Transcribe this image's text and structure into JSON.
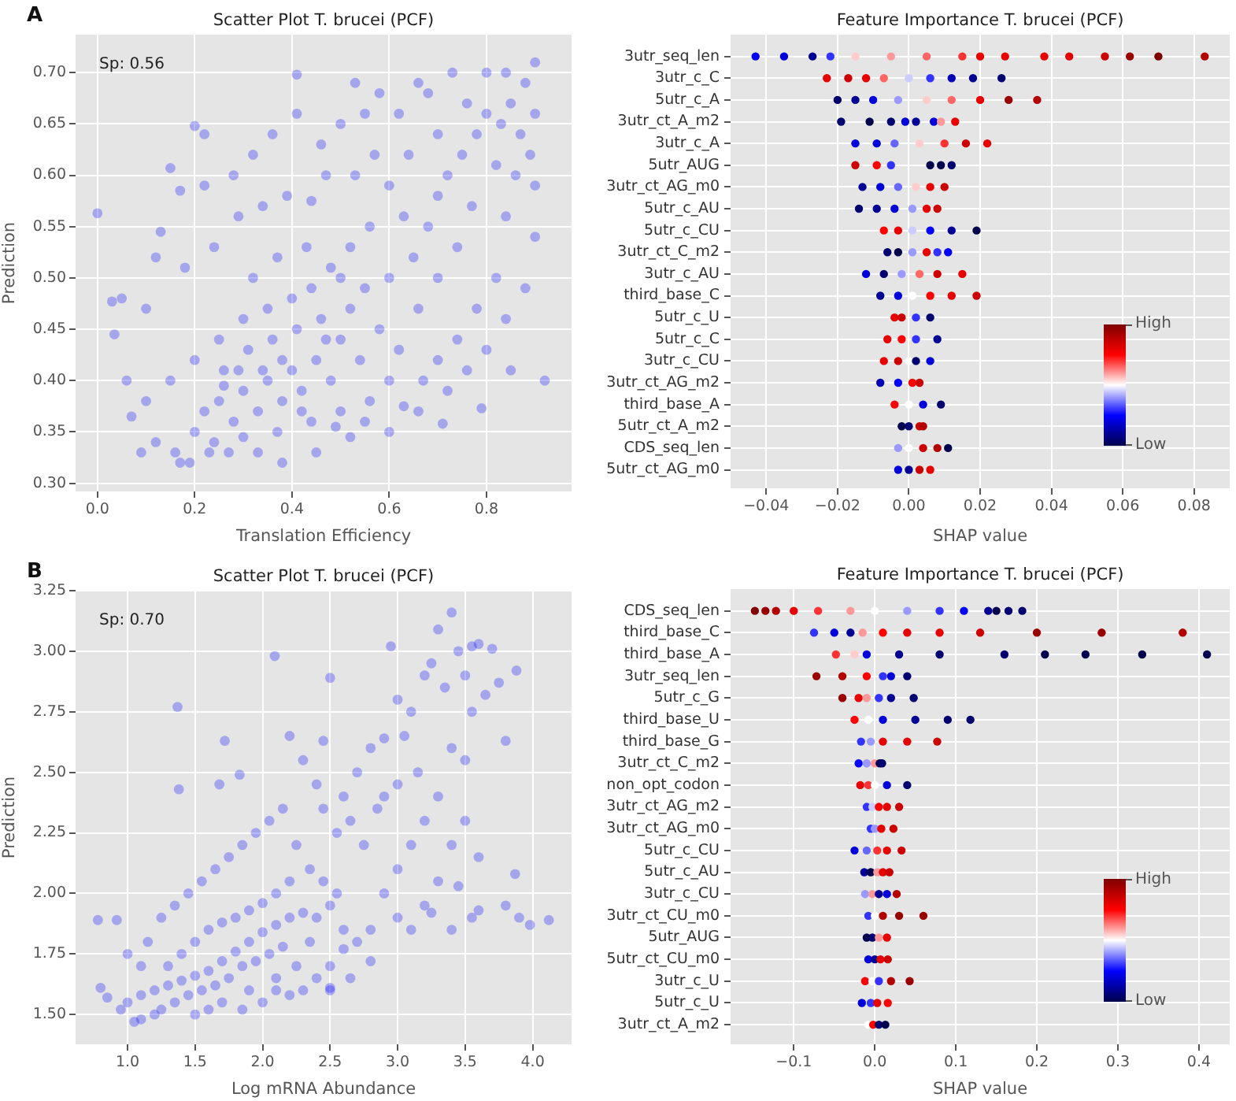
{
  "chart_data": [
    {
      "type": "scatter",
      "title": "Scatter Plot T. brucei (PCF)",
      "xlabel": "Translation Efficiency",
      "ylabel": "Prediction",
      "annotations": [
        "A",
        "Sp: 0.56"
      ],
      "color": "#0000ff",
      "marker": "circle",
      "grid": true,
      "xlim": [
        -0.045,
        0.975
      ],
      "xticks": [
        {
          "value": 0,
          "label": "0.0"
        },
        0.2,
        0.4,
        0.6,
        0.8
      ],
      "ylim": [
        0.292,
        0.737
      ],
      "yticks": [
        {
          "value": 0.3,
          "label": "0.30"
        },
        0.35,
        {
          "value": 0.4,
          "label": "0.40"
        },
        0.45,
        {
          "value": 0.5,
          "label": "0.50"
        },
        0.55,
        {
          "value": 0.6,
          "label": "0.60"
        },
        0.65,
        {
          "value": 0.7,
          "label": "0.70"
        }
      ],
      "x": [
        0.25,
        0.3,
        0.35,
        0.4,
        0.45,
        0.28,
        0.33,
        0.38,
        0.42,
        0.22,
        0.26,
        0.31,
        0.36,
        0.41,
        0.46,
        0.5,
        0.52,
        0.55,
        0.48,
        0.2,
        0.24,
        0.3,
        0.37,
        0.44,
        0.5,
        0.56,
        0.6,
        0.62,
        0.58,
        0.6,
        0.65,
        0.68,
        0.7,
        0.72,
        0.75,
        0.78,
        0.8,
        0.83,
        0.85,
        0.87,
        0.82,
        0.77,
        0.74,
        0.7,
        0.66,
        0.63,
        0.6,
        0.56,
        0.52,
        0.48,
        0.44,
        0.4,
        0.35,
        0.3,
        0.25,
        0.2,
        0.15,
        0.1,
        0.07,
        0.12,
        0.16,
        0.19,
        0.23,
        0.27,
        0.33,
        0.38,
        0.45,
        0.52,
        0.6,
        0.66,
        0.72,
        0.76,
        0.8,
        0.84,
        0.88,
        0.9,
        0.9,
        0.89,
        0.9,
        0.88,
        0.9,
        0.8,
        0.73,
        0.68,
        0.62,
        0.55,
        0.5,
        0.46,
        0.41,
        0.41,
        0.36,
        0.32,
        0.28,
        0.22,
        0.2,
        0.22,
        0.15,
        0.17,
        0.13,
        0.12,
        0.18,
        0.24,
        0.29,
        0.34,
        0.39,
        0.44,
        0.47,
        0.53,
        0.57,
        0.64,
        0.7,
        0.76,
        0.84,
        0.86,
        0.84,
        0.82,
        0.78,
        0.74,
        0.7,
        0.67,
        0.63,
        0.55,
        0.49,
        0.42,
        0.38,
        0.34,
        0.29,
        0.26,
        0.32,
        0.37,
        0.43,
        0.5,
        0.54,
        0.47,
        0,
        0.03,
        0.035,
        0.92,
        0.79,
        0.71,
        0.17,
        0.09,
        0.06,
        0.1,
        0.05,
        0.85,
        0.66,
        0.53,
        0.58
      ],
      "values": [
        0.38,
        0.39,
        0.4,
        0.41,
        0.42,
        0.36,
        0.37,
        0.38,
        0.39,
        0.37,
        0.41,
        0.43,
        0.44,
        0.45,
        0.46,
        0.44,
        0.47,
        0.49,
        0.4,
        0.35,
        0.34,
        0.345,
        0.35,
        0.36,
        0.37,
        0.38,
        0.4,
        0.43,
        0.45,
        0.5,
        0.52,
        0.55,
        0.58,
        0.6,
        0.62,
        0.64,
        0.66,
        0.65,
        0.67,
        0.64,
        0.61,
        0.57,
        0.53,
        0.5,
        0.47,
        0.56,
        0.59,
        0.55,
        0.53,
        0.51,
        0.49,
        0.48,
        0.47,
        0.46,
        0.44,
        0.42,
        0.4,
        0.38,
        0.365,
        0.34,
        0.33,
        0.32,
        0.33,
        0.33,
        0.33,
        0.32,
        0.33,
        0.345,
        0.35,
        0.37,
        0.39,
        0.41,
        0.43,
        0.46,
        0.49,
        0.54,
        0.59,
        0.62,
        0.66,
        0.69,
        0.71,
        0.7,
        0.7,
        0.68,
        0.66,
        0.66,
        0.65,
        0.63,
        0.66,
        0.698,
        0.64,
        0.62,
        0.6,
        0.59,
        0.648,
        0.64,
        0.607,
        0.585,
        0.545,
        0.52,
        0.51,
        0.53,
        0.56,
        0.57,
        0.58,
        0.575,
        0.6,
        0.6,
        0.62,
        0.62,
        0.64,
        0.67,
        0.7,
        0.6,
        0.56,
        0.5,
        0.47,
        0.44,
        0.42,
        0.4,
        0.375,
        0.36,
        0.355,
        0.37,
        0.42,
        0.41,
        0.41,
        0.395,
        0.5,
        0.52,
        0.53,
        0.5,
        0.42,
        0.44,
        0.563,
        0.477,
        0.445,
        0.4,
        0.373,
        0.358,
        0.32,
        0.33,
        0.4,
        0.47,
        0.48,
        0.41,
        0.69,
        0.69,
        0.68
      ]
    },
    {
      "type": "scatter",
      "orientation": "horizontal",
      "title": "Feature Importance T. brucei (PCF)",
      "xlabel": "SHAP value",
      "annotations": [
        "High",
        "Low"
      ],
      "marker": "circle",
      "grid": true,
      "categories": [
        "3utr_seq_len",
        "3utr_c_C",
        "5utr_c_A",
        "3utr_ct_A_m2",
        "3utr_c_A",
        "5utr_AUG",
        "3utr_ct_AG_m0",
        "5utr_c_AU",
        "5utr_c_CU",
        "3utr_ct_C_m2",
        "3utr_c_AU",
        "third_base_C",
        "5utr_c_U",
        "5utr_c_C",
        "3utr_c_CU",
        "3utr_ct_AG_m2",
        "third_base_A",
        "5utr_ct_A_m2",
        "CDS_seq_len",
        "5utr_ct_AG_m0"
      ],
      "xlim": [
        -0.05,
        0.09
      ],
      "xticks": [
        {
          "value": -0.04,
          "label": "−0.04"
        },
        {
          "value": -0.02,
          "label": "−0.02"
        },
        {
          "value": 0,
          "label": "0.00"
        },
        0.02,
        0.04,
        0.06,
        0.08
      ],
      "series": [
        {
          "type": "scatter",
          "x": [
            "3utr_seq_len",
            "3utr_seq_len",
            "3utr_seq_len",
            "3utr_seq_len",
            "3utr_seq_len",
            "3utr_seq_len",
            "3utr_seq_len",
            "3utr_seq_len",
            "3utr_seq_len",
            "3utr_seq_len",
            "3utr_seq_len",
            "3utr_seq_len",
            "3utr_seq_len",
            "3utr_seq_len",
            "3utr_seq_len",
            "3utr_seq_len",
            "3utr_c_C",
            "3utr_c_C",
            "3utr_c_C",
            "3utr_c_C",
            "3utr_c_C",
            "3utr_c_C",
            "3utr_c_C",
            "3utr_c_C",
            "3utr_c_C",
            "5utr_c_A",
            "5utr_c_A",
            "5utr_c_A",
            "5utr_c_A",
            "5utr_c_A",
            "5utr_c_A",
            "5utr_c_A",
            "5utr_c_A",
            "5utr_c_A",
            "3utr_ct_A_m2",
            "3utr_ct_A_m2",
            "3utr_ct_A_m2",
            "3utr_ct_A_m2",
            "3utr_ct_A_m2",
            "3utr_ct_A_m2",
            "3utr_ct_A_m2",
            "3utr_ct_A_m2",
            "3utr_c_A",
            "3utr_c_A",
            "3utr_c_A",
            "3utr_c_A",
            "3utr_c_A",
            "3utr_c_A",
            "3utr_c_A",
            "5utr_AUG",
            "5utr_AUG",
            "5utr_AUG",
            "5utr_AUG",
            "5utr_AUG",
            "5utr_AUG",
            "3utr_ct_AG_m0",
            "3utr_ct_AG_m0",
            "3utr_ct_AG_m0",
            "3utr_ct_AG_m0",
            "3utr_ct_AG_m0",
            "3utr_ct_AG_m0",
            "5utr_c_AU",
            "5utr_c_AU",
            "5utr_c_AU",
            "5utr_c_AU",
            "5utr_c_AU",
            "5utr_c_AU",
            "5utr_c_CU",
            "5utr_c_CU",
            "5utr_c_CU",
            "5utr_c_CU",
            "5utr_c_CU",
            "5utr_c_CU",
            "3utr_ct_C_m2",
            "3utr_ct_C_m2",
            "3utr_ct_C_m2",
            "3utr_ct_C_m2",
            "3utr_ct_C_m2",
            "3utr_ct_C_m2",
            "3utr_c_AU",
            "3utr_c_AU",
            "3utr_c_AU",
            "3utr_c_AU",
            "3utr_c_AU",
            "3utr_c_AU",
            "third_base_C",
            "third_base_C",
            "third_base_C",
            "third_base_C",
            "third_base_C",
            "third_base_C",
            "5utr_c_U",
            "5utr_c_U",
            "5utr_c_U",
            "5utr_c_U",
            "5utr_c_C",
            "5utr_c_C",
            "5utr_c_C",
            "5utr_c_C",
            "3utr_c_CU",
            "3utr_c_CU",
            "3utr_c_CU",
            "3utr_c_CU",
            "3utr_c_CU",
            "3utr_ct_AG_m2",
            "3utr_ct_AG_m2",
            "3utr_ct_AG_m2",
            "3utr_ct_AG_m2",
            "third_base_A",
            "third_base_A",
            "third_base_A",
            "third_base_A",
            "5utr_ct_A_m2",
            "5utr_ct_A_m2",
            "5utr_ct_A_m2",
            "5utr_ct_A_m2",
            "CDS_seq_len",
            "CDS_seq_len",
            "CDS_seq_len",
            "CDS_seq_len",
            "CDS_seq_len",
            "5utr_ct_AG_m0",
            "5utr_ct_AG_m0",
            "5utr_ct_AG_m0",
            "5utr_ct_AG_m0"
          ],
          "values": [
            -0.043,
            -0.035,
            -0.027,
            -0.022,
            -0.015,
            -0.005,
            0.005,
            0.015,
            0.02,
            0.027,
            0.038,
            0.045,
            0.055,
            0.062,
            0.07,
            0.083,
            -0.023,
            -0.017,
            -0.012,
            -0.007,
            0,
            0.006,
            0.012,
            0.018,
            0.026,
            -0.02,
            -0.015,
            -0.01,
            -0.003,
            0.005,
            0.012,
            0.02,
            0.028,
            0.036,
            -0.019,
            -0.011,
            -0.005,
            -0.001,
            0.002,
            0.007,
            0.009,
            0.013,
            -0.015,
            -0.009,
            -0.004,
            0.003,
            0.01,
            0.016,
            0.022,
            -0.015,
            -0.009,
            -0.005,
            0.006,
            0.009,
            0.012,
            -0.013,
            -0.008,
            -0.003,
            0.002,
            0.006,
            0.01,
            -0.014,
            -0.009,
            -0.004,
            0.001,
            0.005,
            0.008,
            -0.007,
            -0.003,
            0.001,
            0.006,
            0.012,
            0.019,
            -0.006,
            -0.003,
            0.001,
            0.005,
            0.008,
            0.011,
            -0.012,
            -0.007,
            -0.002,
            0.003,
            0.008,
            0.015,
            -0.008,
            -0.003,
            0.001,
            0.006,
            0.012,
            0.019,
            -0.004,
            -0.002,
            0.002,
            0.006,
            -0.006,
            -0.002,
            0.002,
            0.008,
            -0.007,
            -0.003,
            0,
            0.002,
            0.006,
            -0.008,
            -0.003,
            0.001,
            0.003,
            -0.004,
            0,
            0.004,
            0.009,
            -0.002,
            0,
            0.003,
            0.004,
            -0.003,
            0,
            0.004,
            0.008,
            0.011,
            -0.003,
            0,
            0.003,
            0.006
          ],
          "colors": [
            "#0000ff",
            "#0000db",
            "#000094",
            "#3333ff",
            "#ffcccc",
            "#ff9999",
            "#ff6666",
            "#ff3333",
            "#e60000",
            "#e60000",
            "#e60000",
            "#e60000",
            "#cc0000",
            "#990000",
            "#800000",
            "#b30000",
            "#e60000",
            "#cc0000",
            "#e60000",
            "#ff6666",
            "#ccccff",
            "#3333ff",
            "#0000b7",
            "#000094",
            "#000070",
            "#000070",
            "#000094",
            "#0000db",
            "#9999ff",
            "#ffcccc",
            "#ff6666",
            "#e60000",
            "#990000",
            "#b30000",
            "#000070",
            "#00004c",
            "#000070",
            "#0000db",
            "#000094",
            "#0000db",
            "#ff9999",
            "#e60000",
            "#0000db",
            "#0000db",
            "#6666ff",
            "#ffcccc",
            "#ff3333",
            "#cc0000",
            "#e60000",
            "#cc0000",
            "#ff0000",
            "#3333ff",
            "#00004c",
            "#00004c",
            "#000070",
            "#000094",
            "#0000db",
            "#6666ff",
            "#ffcccc",
            "#e60000",
            "#cc0000",
            "#000070",
            "#000094",
            "#0000db",
            "#9999ff",
            "#e60000",
            "#cc0000",
            "#ff0000",
            "#e60000",
            "#ccccff",
            "#0000ff",
            "#000094",
            "#00004c",
            "#000070",
            "#00004c",
            "#9999ff",
            "#e60000",
            "#3333ff",
            "#0000ff",
            "#0000db",
            "#000070",
            "#9999ff",
            "#ff6666",
            "#cc0000",
            "#e60000",
            "#000094",
            "#0000db",
            "#ffffff",
            "#ff0000",
            "#e60000",
            "#cc0000",
            "#e60000",
            "#cc0000",
            "#3333ff",
            "#000070",
            "#e60000",
            "#ff0000",
            "#3333ff",
            "#000094",
            "#e60000",
            "#cc0000",
            "#ffffff",
            "#000070",
            "#0000db",
            "#0000b7",
            "#0000ff",
            "#ff0000",
            "#cc0000",
            "#ff0000",
            "#ffffff",
            "#0000db",
            "#000070",
            "#00004c",
            "#000070",
            "#cc0000",
            "#b30000",
            "#9999ff",
            "#ffffff",
            "#cc0000",
            "#b30000",
            "#00004c",
            "#0000db",
            "#000094",
            "#cc0000",
            "#e60000"
          ]
        }
      ]
    },
    {
      "type": "scatter",
      "title": "Scatter Plot T. brucei (PCF)",
      "xlabel": "Log mRNA Abundance",
      "ylabel": "Prediction",
      "annotations": [
        "B",
        "Sp: 0.70"
      ],
      "color": "#0000ff",
      "marker": "circle",
      "grid": true,
      "xlim": [
        0.615,
        4.288
      ],
      "xticks": [
        {
          "value": 1,
          "label": "1.0"
        },
        1.5,
        {
          "value": 2,
          "label": "2.0"
        },
        2.5,
        {
          "value": 3,
          "label": "3.0"
        },
        3.5,
        {
          "value": 4,
          "label": "4.0"
        }
      ],
      "ylim": [
        1.377,
        3.25
      ],
      "yticks": [
        {
          "value": 1.5,
          "label": "1.50"
        },
        1.75,
        {
          "value": 2,
          "label": "2.00"
        },
        2.25,
        {
          "value": 2.5,
          "label": "2.50"
        },
        2.75,
        {
          "value": 3,
          "label": "3.00"
        },
        3.25
      ],
      "x": [
        1,
        1.1,
        1.2,
        1.3,
        1.4,
        1.5,
        1.6,
        1.7,
        1.8,
        1.9,
        2,
        2.1,
        2.2,
        2.3,
        2.4,
        2.5,
        1.25,
        1.35,
        1.45,
        1.55,
        1.65,
        1.75,
        1.85,
        1.95,
        2.05,
        2.15,
        1.3,
        1.4,
        1.5,
        1.6,
        1.7,
        1.8,
        1.9,
        2,
        2.1,
        2.2,
        1.2,
        1.1,
        1.05,
        0.95,
        0.85,
        0.8,
        0.78,
        0.92,
        1,
        1.1,
        1.15,
        1.25,
        1.35,
        1.45,
        1.55,
        1.65,
        1.75,
        1.85,
        1.95,
        2.05,
        2.15,
        2.25,
        2.35,
        2.45,
        2.55,
        2.6,
        2.7,
        2.8,
        2.5,
        2.4,
        2.3,
        2.2,
        2.65,
        2.5,
        1.37,
        1.38,
        1.72,
        1.68,
        1.83,
        2.09,
        2.5,
        2.45,
        2.2,
        2.3,
        2.4,
        2.6,
        2.7,
        2.8,
        2.9,
        2.95,
        3,
        3.05,
        3.1,
        3.15,
        3.2,
        3.25,
        3.3,
        3.35,
        3.4,
        3.45,
        3.5,
        3.55,
        3.6,
        3.7,
        3.65,
        3.55,
        3.5,
        3.4,
        3.3,
        3.2,
        3.1,
        3,
        2.9,
        3,
        3.1,
        3.2,
        3.3,
        3.4,
        3.5,
        3.6,
        3.55,
        3.45,
        3.4,
        3.25,
        3.6,
        3.8,
        3.9,
        3.98,
        4.12,
        3.87,
        3.8,
        3.88,
        3.75,
        2.85,
        2.75,
        2.65,
        2.9,
        3,
        2.55,
        2.45,
        2.35,
        2.25,
        2.1,
        1.9,
        1.7,
        1.5,
        1.6,
        1.85,
        2,
        2.1,
        2.5,
        2.8,
        2.6
      ],
      "values": [
        1.55,
        1.58,
        1.6,
        1.62,
        1.64,
        1.66,
        1.68,
        1.72,
        1.76,
        1.8,
        1.84,
        1.87,
        1.9,
        1.92,
        1.9,
        1.95,
        1.52,
        1.55,
        1.58,
        1.6,
        1.62,
        1.65,
        1.7,
        1.72,
        1.75,
        1.78,
        1.7,
        1.75,
        1.8,
        1.85,
        1.88,
        1.9,
        1.93,
        1.96,
        2,
        2.05,
        1.5,
        1.48,
        1.47,
        1.52,
        1.57,
        1.61,
        1.89,
        1.89,
        1.75,
        1.7,
        1.8,
        1.9,
        1.95,
        2,
        2.05,
        2.1,
        2.15,
        2.2,
        2.25,
        2.3,
        2.35,
        2.2,
        2.1,
        2.05,
        2,
        1.85,
        1.8,
        1.85,
        1.7,
        1.65,
        1.6,
        1.58,
        1.65,
        1.6,
        2.77,
        2.43,
        2.63,
        2.45,
        2.49,
        2.98,
        2.89,
        2.63,
        2.65,
        2.55,
        2.45,
        2.4,
        2.5,
        2.6,
        2.64,
        3.02,
        2.8,
        2.65,
        2.75,
        2.5,
        2.9,
        2.95,
        3.09,
        2.85,
        3.16,
        3,
        2.9,
        3.02,
        3.03,
        3.01,
        2.82,
        2.75,
        2.55,
        2.6,
        2.4,
        2.3,
        2.2,
        2.1,
        2,
        1.9,
        1.85,
        1.95,
        2.05,
        2.2,
        2.3,
        2.15,
        1.9,
        2.03,
        1.85,
        1.92,
        1.93,
        1.95,
        1.9,
        1.87,
        1.89,
        2.08,
        2.63,
        2.92,
        2.87,
        2.35,
        2.2,
        2.3,
        2.4,
        2.45,
        2.25,
        2.35,
        1.8,
        1.7,
        1.65,
        1.6,
        1.55,
        1.5,
        1.52,
        1.52,
        1.55,
        1.6,
        1.61,
        1.72,
        1.77
      ]
    },
    {
      "type": "scatter",
      "orientation": "horizontal",
      "title": "Feature Importance T. brucei (PCF)",
      "xlabel": "SHAP value",
      "annotations": [
        "High",
        "Low"
      ],
      "marker": "circle",
      "grid": true,
      "categories": [
        "CDS_seq_len",
        "third_base_C",
        "third_base_A",
        "3utr_seq_len",
        "5utr_c_G",
        "third_base_U",
        "third_base_G",
        "3utr_ct_C_m2",
        "non_opt_codon",
        "3utr_ct_AG_m2",
        "3utr_ct_AG_m0",
        "5utr_c_CU",
        "5utr_c_AU",
        "3utr_c_CU",
        "3utr_ct_CU_m0",
        "5utr_AUG",
        "5utr_ct_CU_m0",
        "3utr_c_U",
        "5utr_c_U",
        "3utr_ct_A_m2"
      ],
      "xlim": [
        -0.178,
        0.438
      ],
      "xticks": [
        {
          "value": -0.1,
          "label": "−0.1"
        },
        {
          "value": 0,
          "label": "0.0"
        },
        0.1,
        0.2,
        0.3,
        0.4
      ],
      "series": [
        {
          "type": "scatter",
          "x": [
            "CDS_seq_len",
            "CDS_seq_len",
            "CDS_seq_len",
            "CDS_seq_len",
            "CDS_seq_len",
            "CDS_seq_len",
            "CDS_seq_len",
            "CDS_seq_len",
            "CDS_seq_len",
            "CDS_seq_len",
            "CDS_seq_len",
            "CDS_seq_len",
            "CDS_seq_len",
            "CDS_seq_len",
            "third_base_C",
            "third_base_C",
            "third_base_C",
            "third_base_C",
            "third_base_C",
            "third_base_C",
            "third_base_C",
            "third_base_C",
            "third_base_C",
            "third_base_C",
            "third_base_C",
            "third_base_A",
            "third_base_A",
            "third_base_A",
            "third_base_A",
            "third_base_A",
            "third_base_A",
            "third_base_A",
            "third_base_A",
            "third_base_A",
            "third_base_A",
            "3utr_seq_len",
            "3utr_seq_len",
            "3utr_seq_len",
            "3utr_seq_len",
            "3utr_seq_len",
            "3utr_seq_len",
            "5utr_c_G",
            "5utr_c_G",
            "5utr_c_G",
            "5utr_c_G",
            "5utr_c_G",
            "5utr_c_G",
            "third_base_U",
            "third_base_U",
            "third_base_U",
            "third_base_U",
            "third_base_U",
            "third_base_U",
            "third_base_G",
            "third_base_G",
            "third_base_G",
            "third_base_G",
            "third_base_G",
            "3utr_ct_C_m2",
            "3utr_ct_C_m2",
            "3utr_ct_C_m2",
            "3utr_ct_C_m2",
            "3utr_ct_C_m2",
            "non_opt_codon",
            "non_opt_codon",
            "non_opt_codon",
            "non_opt_codon",
            "non_opt_codon",
            "3utr_ct_AG_m2",
            "3utr_ct_AG_m2",
            "3utr_ct_AG_m2",
            "3utr_ct_AG_m2",
            "3utr_ct_AG_m2",
            "3utr_ct_AG_m0",
            "3utr_ct_AG_m0",
            "3utr_ct_AG_m0",
            "3utr_ct_AG_m0",
            "5utr_c_CU",
            "5utr_c_CU",
            "5utr_c_CU",
            "5utr_c_CU",
            "5utr_c_CU",
            "5utr_c_AU",
            "5utr_c_AU",
            "5utr_c_AU",
            "5utr_c_AU",
            "5utr_c_AU",
            "3utr_c_CU",
            "3utr_c_CU",
            "3utr_c_CU",
            "3utr_c_CU",
            "3utr_c_CU",
            "3utr_ct_CU_m0",
            "3utr_ct_CU_m0",
            "3utr_ct_CU_m0",
            "3utr_ct_CU_m0",
            "3utr_ct_CU_m0",
            "5utr_AUG",
            "5utr_AUG",
            "5utr_AUG",
            "5utr_AUG",
            "5utr_ct_CU_m0",
            "5utr_ct_CU_m0",
            "5utr_ct_CU_m0",
            "5utr_ct_CU_m0",
            "3utr_c_U",
            "3utr_c_U",
            "3utr_c_U",
            "3utr_c_U",
            "3utr_c_U",
            "5utr_c_U",
            "5utr_c_U",
            "5utr_c_U",
            "5utr_c_U",
            "3utr_ct_A_m2",
            "3utr_ct_A_m2",
            "3utr_ct_A_m2",
            "3utr_ct_A_m2"
          ],
          "values": [
            -0.148,
            -0.135,
            -0.122,
            -0.1,
            -0.07,
            -0.03,
            0,
            0.04,
            0.08,
            0.11,
            0.14,
            0.15,
            0.165,
            0.182,
            -0.075,
            -0.05,
            -0.03,
            -0.015,
            0.01,
            0.04,
            0.08,
            0.13,
            0.2,
            0.28,
            0.38,
            -0.048,
            -0.025,
            -0.01,
            0.03,
            0.08,
            0.16,
            0.21,
            0.26,
            0.33,
            0.41,
            -0.072,
            -0.04,
            -0.01,
            0.01,
            0.02,
            0.04,
            -0.04,
            -0.02,
            -0.01,
            0.005,
            0.02,
            0.048,
            -0.025,
            -0.008,
            0.01,
            0.05,
            0.09,
            0.118,
            -0.017,
            -0.005,
            0.01,
            0.04,
            0.077,
            -0.02,
            -0.01,
            0,
            0.006,
            0.009,
            -0.018,
            -0.008,
            0,
            0.015,
            0.04,
            -0.01,
            -0.003,
            0.005,
            0.015,
            0.03,
            -0.005,
            0,
            0.008,
            0.023,
            -0.025,
            -0.01,
            0.003,
            0.015,
            0.033,
            -0.013,
            -0.005,
            0.003,
            0.01,
            0.018,
            -0.012,
            -0.003,
            0.005,
            0.015,
            0.027,
            -0.008,
            0,
            0.01,
            0.03,
            0.06,
            -0.01,
            -0.003,
            0.005,
            0.015,
            -0.008,
            0,
            0.007,
            0.016,
            -0.012,
            -0.003,
            0.005,
            0.02,
            0.043,
            -0.016,
            -0.005,
            0.003,
            0.016,
            -0.008,
            -0.002,
            0.005,
            0.013
          ],
          "colors": [
            "#800000",
            "#990000",
            "#b30000",
            "#e60000",
            "#ff3333",
            "#ff9999",
            "#ffffff",
            "#9999ff",
            "#3333ff",
            "#0000ff",
            "#000094",
            "#00004c",
            "#000070",
            "#000070",
            "#3333ff",
            "#0000db",
            "#000094",
            "#ff9999",
            "#ff0000",
            "#e60000",
            "#e60000",
            "#cc0000",
            "#990000",
            "#990000",
            "#b30000",
            "#ff3333",
            "#ffcccc",
            "#0000db",
            "#000094",
            "#000070",
            "#000070",
            "#00004c",
            "#00004c",
            "#00004c",
            "#00004c",
            "#990000",
            "#b30000",
            "#ff0000",
            "#3333ff",
            "#0000db",
            "#000070",
            "#990000",
            "#e60000",
            "#ff9999",
            "#3333ff",
            "#000094",
            "#000070",
            "#ff0000",
            "#ffffff",
            "#0000db",
            "#000094",
            "#000070",
            "#000070",
            "#3333ff",
            "#9999ff",
            "#e60000",
            "#e60000",
            "#cc0000",
            "#0000ff",
            "#9999ff",
            "#ff9999",
            "#00004c",
            "#000070",
            "#e60000",
            "#ff3333",
            "#ffffff",
            "#0000db",
            "#000070",
            "#3333ff",
            "#ccccff",
            "#ff0000",
            "#e60000",
            "#cc0000",
            "#3333ff",
            "#9999ff",
            "#e60000",
            "#cc0000",
            "#0000db",
            "#6666ff",
            "#ff3333",
            "#e60000",
            "#cc0000",
            "#000094",
            "#00004c",
            "#ff9999",
            "#e60000",
            "#cc0000",
            "#9999ff",
            "#ff9999",
            "#000094",
            "#0000db",
            "#b30000",
            "#3333ff",
            "#ffffff",
            "#b30000",
            "#990000",
            "#990000",
            "#00004c",
            "#000070",
            "#ff9999",
            "#e60000",
            "#0000db",
            "#000094",
            "#e60000",
            "#cc0000",
            "#ff0000",
            "#ffffff",
            "#3333ff",
            "#b30000",
            "#990000",
            "#0000db",
            "#3333ff",
            "#e60000",
            "#ff0000",
            "#ffffff",
            "#ff0000",
            "#000070",
            "#00004c"
          ]
        }
      ]
    }
  ]
}
